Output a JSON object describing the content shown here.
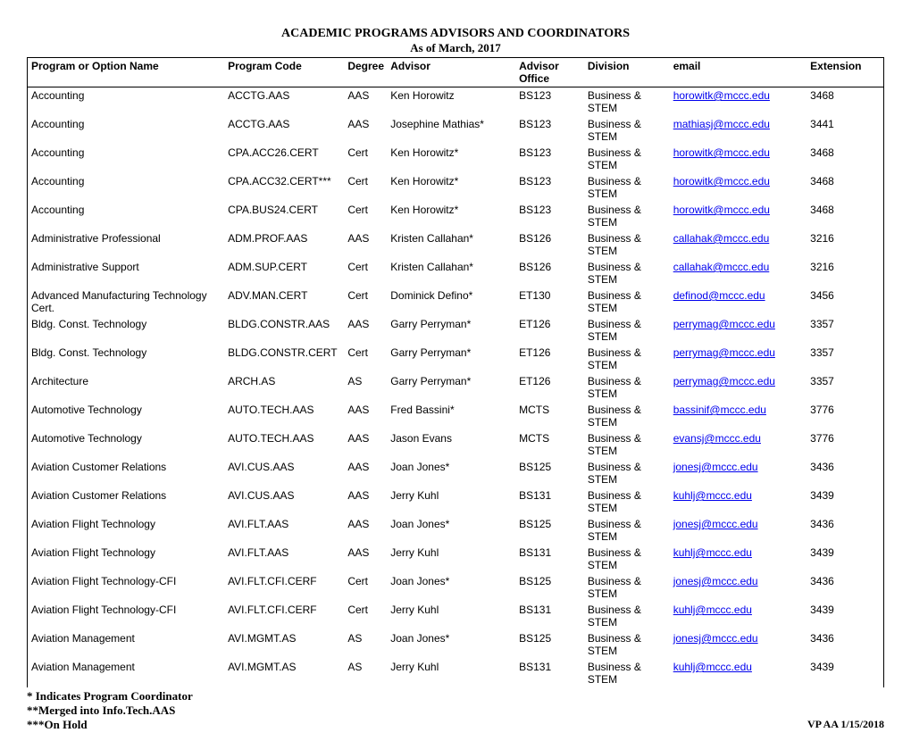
{
  "title": "ACADEMIC PROGRAMS ADVISORS AND COORDINATORS",
  "subtitle": "As of March, 2017",
  "columns": {
    "program": "Program or Option Name",
    "code": "Program Code",
    "degree": "Degree",
    "advisor": "Advisor",
    "office": "Advisor Office",
    "division": "Division",
    "email": "email",
    "extension": "Extension"
  },
  "rows": [
    {
      "program": "Accounting",
      "code": "ACCTG.AAS",
      "degree": "AAS",
      "advisor": "Ken Horowitz",
      "office": "BS123",
      "division": "Business & STEM",
      "email": "horowitk@mccc.edu",
      "ext": "3468"
    },
    {
      "program": "Accounting",
      "code": "ACCTG.AAS",
      "degree": "AAS",
      "advisor": "Josephine Mathias*",
      "office": "BS123",
      "division": "Business & STEM",
      "email": "mathiasj@mccc.edu",
      "ext": "3441"
    },
    {
      "program": "Accounting",
      "code": "CPA.ACC26.CERT",
      "degree": "Cert",
      "advisor": "Ken Horowitz*",
      "office": "BS123",
      "division": "Business & STEM",
      "email": "horowitk@mccc.edu",
      "ext": "3468"
    },
    {
      "program": "Accounting",
      "code": "CPA.ACC32.CERT***",
      "degree": "Cert",
      "advisor": "Ken Horowitz*",
      "office": "BS123",
      "division": "Business & STEM",
      "email": "horowitk@mccc.edu",
      "ext": "3468"
    },
    {
      "program": "Accounting",
      "code": "CPA.BUS24.CERT",
      "degree": "Cert",
      "advisor": "Ken Horowitz*",
      "office": "BS123",
      "division": "Business & STEM",
      "email": "horowitk@mccc.edu",
      "ext": "3468"
    },
    {
      "program": "Administrative Professional",
      "code": "ADM.PROF.AAS",
      "degree": "AAS",
      "advisor": "Kristen Callahan*",
      "office": "BS126",
      "division": "Business & STEM",
      "email": "callahak@mccc.edu",
      "ext": "3216"
    },
    {
      "program": "Administrative Support",
      "code": "ADM.SUP.CERT",
      "degree": "Cert",
      "advisor": "Kristen Callahan*",
      "office": "BS126",
      "division": "Business & STEM",
      "email": "callahak@mccc.edu",
      "ext": "3216"
    },
    {
      "program": "Advanced Manufacturing Technology Cert.",
      "code": "ADV.MAN.CERT",
      "degree": "Cert",
      "advisor": "Dominick Defino*",
      "office": "ET130",
      "division": "Business & STEM",
      "email": "definod@mccc.edu",
      "ext": "3456"
    },
    {
      "program": "Bldg. Const. Technology",
      "code": "BLDG.CONSTR.AAS",
      "degree": "AAS",
      "advisor": "Garry Perryman*",
      "office": "ET126",
      "division": "Business & STEM",
      "email": "perrymag@mccc.edu",
      "ext": "3357"
    },
    {
      "program": "Bldg. Const. Technology",
      "code": "BLDG.CONSTR.CERT",
      "degree": "Cert",
      "advisor": "Garry Perryman*",
      "office": "ET126",
      "division": "Business & STEM",
      "email": "perrymag@mccc.edu",
      "ext": "3357"
    },
    {
      "program": "Architecture",
      "code": "ARCH.AS",
      "degree": "AS",
      "advisor": "Garry Perryman*",
      "office": "ET126",
      "division": "Business & STEM",
      "email": "perrymag@mccc.edu",
      "ext": "3357"
    },
    {
      "program": "Automotive Technology",
      "code": "AUTO.TECH.AAS",
      "degree": "AAS",
      "advisor": "Fred Bassini*",
      "office": "MCTS",
      "division": "Business & STEM",
      "email": "bassinif@mccc.edu",
      "ext": "3776"
    },
    {
      "program": "Automotive Technology",
      "code": "AUTO.TECH.AAS",
      "degree": "AAS",
      "advisor": "Jason Evans",
      "office": "MCTS",
      "division": "Business & STEM",
      "email": "evansj@mccc.edu",
      "ext": "3776"
    },
    {
      "program": "Aviation Customer Relations",
      "code": "AVI.CUS.AAS",
      "degree": "AAS",
      "advisor": "Joan Jones*",
      "office": "BS125",
      "division": "Business & STEM",
      "email": "jonesj@mccc.edu",
      "ext": "3436"
    },
    {
      "program": "Aviation Customer Relations",
      "code": "AVI.CUS.AAS",
      "degree": "AAS",
      "advisor": "Jerry Kuhl",
      "office": "BS131",
      "division": "Business & STEM",
      "email": "kuhlj@mccc.edu",
      "ext": "3439"
    },
    {
      "program": "Aviation Flight Technology",
      "code": "AVI.FLT.AAS",
      "degree": "AAS",
      "advisor": "Joan Jones*",
      "office": "BS125",
      "division": "Business & STEM",
      "email": "jonesj@mccc.edu",
      "ext": "3436"
    },
    {
      "program": "Aviation Flight Technology",
      "code": "AVI.FLT.AAS",
      "degree": "AAS",
      "advisor": "Jerry Kuhl",
      "office": "BS131",
      "division": "Business & STEM",
      "email": "kuhlj@mccc.edu",
      "ext": "3439"
    },
    {
      "program": "Aviation Flight Technology-CFI",
      "code": "AVI.FLT.CFI.CERF",
      "degree": "Cert",
      "advisor": "Joan Jones*",
      "office": "BS125",
      "division": "Business & STEM",
      "email": "jonesj@mccc.edu",
      "ext": "3436"
    },
    {
      "program": "Aviation Flight Technology-CFI",
      "code": "AVI.FLT.CFI.CERF",
      "degree": "Cert",
      "advisor": "Jerry Kuhl",
      "office": "BS131",
      "division": "Business & STEM",
      "email": "kuhlj@mccc.edu",
      "ext": "3439"
    },
    {
      "program": "Aviation Management",
      "code": "AVI.MGMT.AS",
      "degree": "AS",
      "advisor": "Joan Jones*",
      "office": "BS125",
      "division": "Business & STEM",
      "email": "jonesj@mccc.edu",
      "ext": "3436"
    },
    {
      "program": "Aviation Management",
      "code": "AVI.MGMT.AS",
      "degree": "AS",
      "advisor": "Jerry Kuhl",
      "office": "BS131",
      "division": "Business & STEM",
      "email": "kuhlj@mccc.edu",
      "ext": "3439"
    }
  ],
  "footnotes": {
    "f1": "*  Indicates Program Coordinator",
    "f2": "**Merged into Info.Tech.AAS",
    "f3": "***On Hold"
  },
  "footer_right": "VP AA 1/15/2018"
}
